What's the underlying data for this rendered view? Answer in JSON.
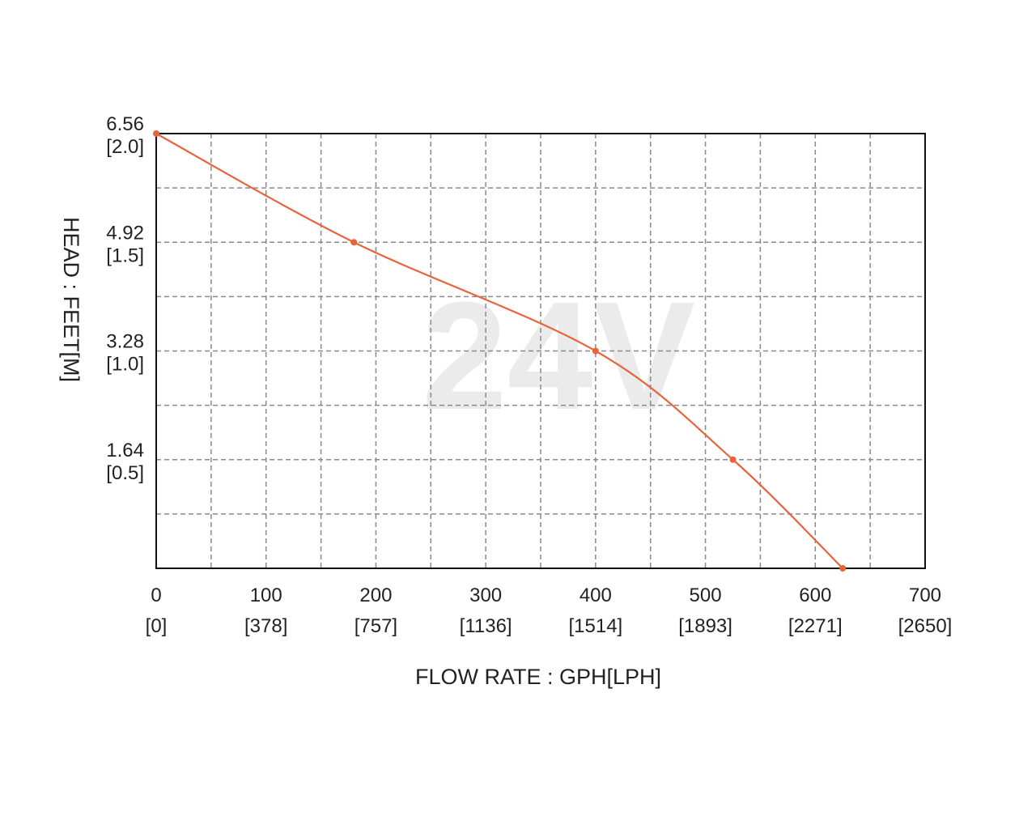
{
  "chart_data": {
    "type": "line",
    "watermark": "24V",
    "xlabel": "FLOW RATE : GPH[LPH]",
    "ylabel": "HEAD : FEET[M]",
    "xlim": [
      0,
      700
    ],
    "ylim": [
      0,
      6.56
    ],
    "x_ticks": [
      {
        "value": 0,
        "label": "0",
        "sublabel": "[0]"
      },
      {
        "value": 100,
        "label": "100",
        "sublabel": "[378]"
      },
      {
        "value": 200,
        "label": "200",
        "sublabel": "[757]"
      },
      {
        "value": 300,
        "label": "300",
        "sublabel": "[1136]"
      },
      {
        "value": 400,
        "label": "400",
        "sublabel": "[1514]"
      },
      {
        "value": 500,
        "label": "500",
        "sublabel": "[1893]"
      },
      {
        "value": 600,
        "label": "600",
        "sublabel": "[2271]"
      },
      {
        "value": 700,
        "label": "700",
        "sublabel": "[2650]"
      }
    ],
    "y_ticks": [
      {
        "value": 6.56,
        "label": "6.56",
        "sublabel": "[2.0]"
      },
      {
        "value": 4.92,
        "label": "4.92",
        "sublabel": "[1.5]"
      },
      {
        "value": 3.28,
        "label": "3.28",
        "sublabel": "[1.0]"
      },
      {
        "value": 1.64,
        "label": "1.64",
        "sublabel": "[0.5]"
      }
    ],
    "x_grid_step": 50,
    "y_grid_step": 0.82,
    "grid": true,
    "series": [
      {
        "color": "#e8643a",
        "x": [
          0,
          180,
          400,
          525,
          625
        ],
        "y": [
          6.56,
          4.92,
          3.28,
          1.64,
          0
        ]
      }
    ]
  }
}
